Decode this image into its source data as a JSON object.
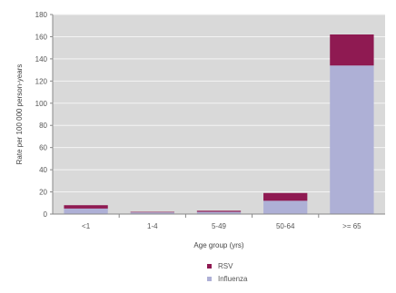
{
  "chart_data": {
    "type": "bar",
    "stacked": true,
    "title": "",
    "xlabel": "Age group (yrs)",
    "ylabel": "Rate per 100 000 person-years",
    "categories": [
      "<1",
      "1-4",
      "5-49",
      "50-64",
      ">= 65"
    ],
    "series": [
      {
        "name": "Influenza",
        "values": [
          5,
          1.5,
          2,
          12,
          134
        ],
        "color": "#aeb0d6"
      },
      {
        "name": "RSV",
        "values": [
          3,
          0.5,
          1,
          7,
          28
        ],
        "color": "#8f1a52"
      }
    ],
    "ylim": [
      0,
      180
    ],
    "yticks": [
      0,
      20,
      40,
      60,
      80,
      100,
      120,
      140,
      160,
      180
    ],
    "grid": true,
    "plot_background": "#d9d9d9",
    "legend": {
      "position": "bottom",
      "order": [
        "RSV",
        "Influenza"
      ]
    }
  }
}
